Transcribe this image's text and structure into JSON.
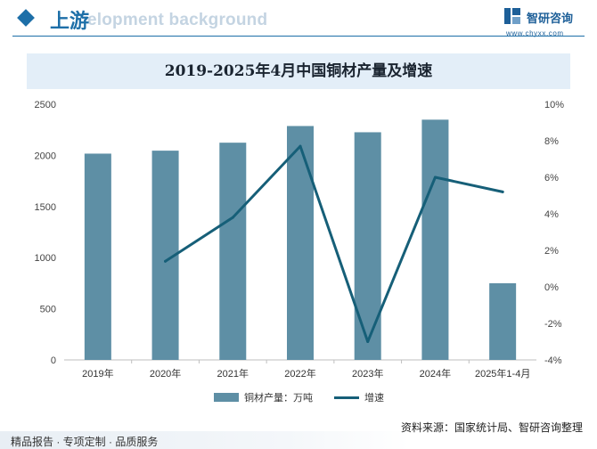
{
  "header": {
    "section_title": "上游",
    "watermark": "elopment background",
    "brand_name": "智研咨询",
    "brand_url": "www.chyxx.com"
  },
  "chart_data": {
    "type": "bar",
    "title": "2019-2025年4月中国铜材产量及增速",
    "categories": [
      "2019年",
      "2020年",
      "2021年",
      "2022年",
      "2023年",
      "2024年",
      "2025年1-4月"
    ],
    "series": [
      {
        "name": "铜材产量：万吨",
        "type": "bar",
        "axis": "left",
        "values": [
          2017,
          2046,
          2124,
          2287,
          2226,
          2349,
          750
        ]
      },
      {
        "name": "增速",
        "type": "line",
        "axis": "right",
        "values": [
          null,
          1.4,
          3.8,
          7.7,
          -3.0,
          6.0,
          5.2
        ]
      }
    ],
    "y_left": {
      "min": 0,
      "max": 2500,
      "ticks": [
        0,
        500,
        1000,
        1500,
        2000,
        2500
      ]
    },
    "y_right": {
      "min": -4,
      "max": 10,
      "ticks": [
        "-4%",
        "-2%",
        "0%",
        "2%",
        "4%",
        "6%",
        "8%",
        "10%"
      ]
    },
    "colors": {
      "bar": "#5e8fa5",
      "line": "#165f78"
    },
    "legend_position": "bottom",
    "grid": false
  },
  "footer": {
    "source": "资料来源：国家统计局、智研咨询整理",
    "tagline": "精品报告 · 专项定制 · 品质服务"
  }
}
